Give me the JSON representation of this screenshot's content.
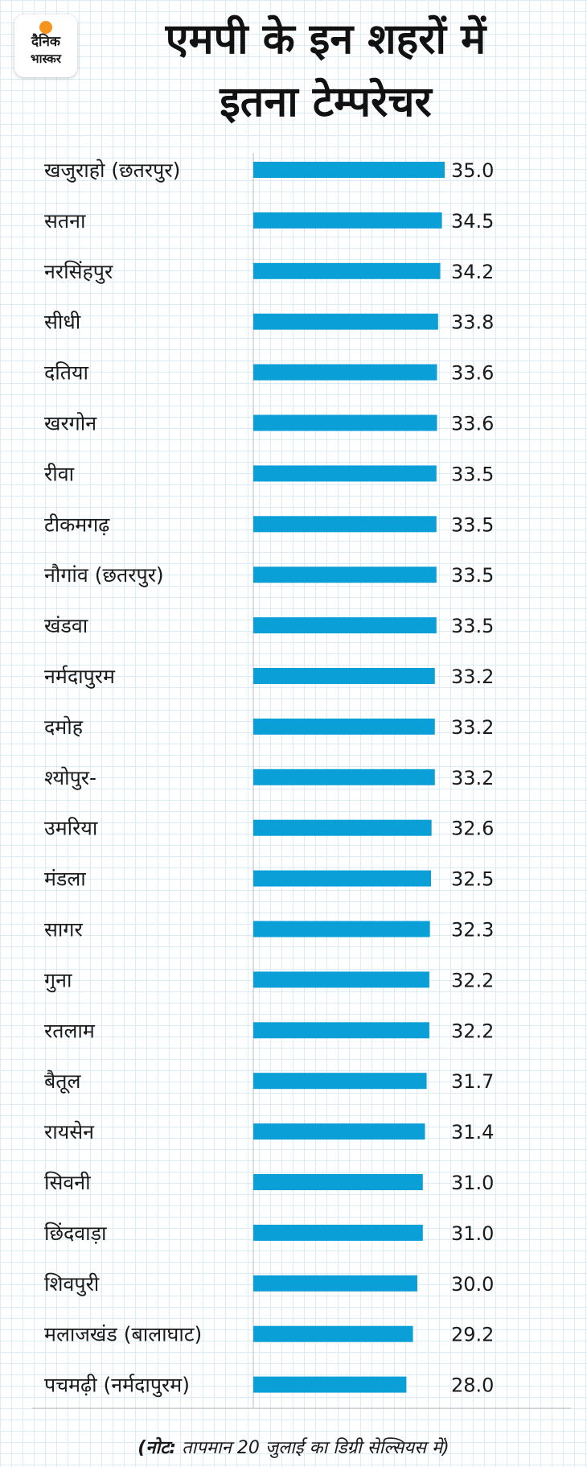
{
  "logo": {
    "line1": "दैनिक",
    "line2": "भास्कर"
  },
  "title": {
    "line1": "एमपी के इन शहरों में",
    "line2": "इतना टेम्परेचर"
  },
  "footnote": {
    "bold": "(नोट:",
    "rest": " तापमान 20 जुलाई का डिग्री सेल्सियस में)"
  },
  "chart_data": {
    "type": "bar",
    "orientation": "horizontal",
    "bar_color": "#0b9fd8",
    "categories": [
      "खजुराहो (छतरपुर)",
      "सतना",
      "नरसिंहपुर",
      "सीधी",
      "दतिया",
      "खरगोन",
      "रीवा",
      "टीकमगढ़",
      "नौगांव (छतरपुर)",
      "खंडवा",
      "नर्मदापुरम",
      "दमोह",
      "श्योपुर-",
      "उमरिया",
      "मंडला",
      "सागर",
      "गुना",
      "रतलाम",
      "बैतूल",
      "रायसेन",
      "सिवनी",
      "छिंदवाड़ा",
      "शिवपुरी",
      "मलाजखंड (बालाघाट)",
      "पचमढ़ी (नर्मदापुरम)"
    ],
    "values": [
      35.0,
      34.5,
      34.2,
      33.8,
      33.6,
      33.6,
      33.5,
      33.5,
      33.5,
      33.5,
      33.2,
      33.2,
      33.2,
      32.6,
      32.5,
      32.3,
      32.2,
      32.2,
      31.7,
      31.4,
      31.0,
      31.0,
      30.0,
      29.2,
      28.0
    ],
    "value_labels": [
      "35.0",
      "34.5",
      "34.2",
      "33.8",
      "33.6",
      "33.6",
      "33.5",
      "33.5",
      "33.5",
      "33.5",
      "33.2",
      "33.2",
      "33.2",
      "32.6",
      "32.5",
      "32.3",
      "32.2",
      "32.2",
      "31.7",
      "31.4",
      "31.0",
      "31.0",
      "30.0",
      "29.2",
      "28.0"
    ]
  }
}
